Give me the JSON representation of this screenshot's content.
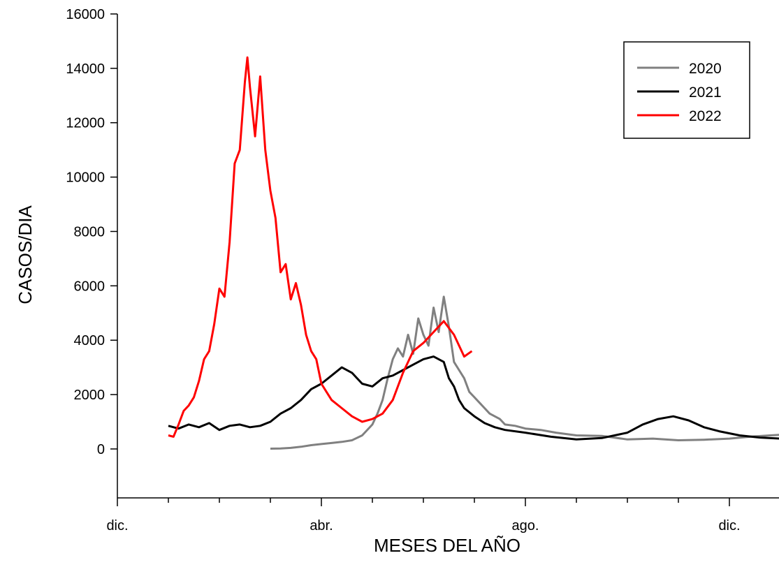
{
  "chart_data": {
    "type": "line",
    "xlabel": "MESES DEL AÑO",
    "ylabel": "CASOS/DIA",
    "ylim": [
      -1800,
      16000
    ],
    "yticks": [
      0,
      2000,
      4000,
      6000,
      8000,
      10000,
      12000,
      14000,
      16000
    ],
    "xlim": [
      0,
      13
    ],
    "xticks": [
      {
        "x": 0,
        "label": "dic."
      },
      {
        "x": 4,
        "label": "abr."
      },
      {
        "x": 8,
        "label": "ago."
      },
      {
        "x": 12,
        "label": "dic."
      }
    ],
    "x_units": "months since start of December",
    "legend_position": "top-right",
    "series": [
      {
        "name": "2020",
        "color": "#808080",
        "points": [
          [
            3.0,
            10
          ],
          [
            3.2,
            15
          ],
          [
            3.4,
            40
          ],
          [
            3.6,
            80
          ],
          [
            3.8,
            140
          ],
          [
            4.0,
            180
          ],
          [
            4.2,
            220
          ],
          [
            4.4,
            260
          ],
          [
            4.6,
            320
          ],
          [
            4.8,
            500
          ],
          [
            5.0,
            900
          ],
          [
            5.1,
            1300
          ],
          [
            5.2,
            1800
          ],
          [
            5.3,
            2600
          ],
          [
            5.4,
            3300
          ],
          [
            5.5,
            3700
          ],
          [
            5.6,
            3400
          ],
          [
            5.7,
            4200
          ],
          [
            5.8,
            3500
          ],
          [
            5.9,
            4800
          ],
          [
            6.0,
            4200
          ],
          [
            6.1,
            3800
          ],
          [
            6.2,
            5200
          ],
          [
            6.3,
            4300
          ],
          [
            6.4,
            5600
          ],
          [
            6.5,
            4500
          ],
          [
            6.6,
            3200
          ],
          [
            6.7,
            2900
          ],
          [
            6.8,
            2600
          ],
          [
            6.9,
            2100
          ],
          [
            7.0,
            1900
          ],
          [
            7.1,
            1700
          ],
          [
            7.2,
            1500
          ],
          [
            7.3,
            1300
          ],
          [
            7.4,
            1200
          ],
          [
            7.5,
            1100
          ],
          [
            7.6,
            900
          ],
          [
            7.8,
            850
          ],
          [
            8.0,
            750
          ],
          [
            8.3,
            700
          ],
          [
            8.6,
            600
          ],
          [
            9.0,
            500
          ],
          [
            9.5,
            480
          ],
          [
            10.0,
            350
          ],
          [
            10.5,
            380
          ],
          [
            11.0,
            320
          ],
          [
            11.5,
            340
          ],
          [
            12.0,
            380
          ],
          [
            12.4,
            450
          ],
          [
            12.8,
            500
          ],
          [
            13.0,
            520
          ]
        ]
      },
      {
        "name": "2021",
        "color": "#000000",
        "points": [
          [
            1.0,
            850
          ],
          [
            1.2,
            750
          ],
          [
            1.4,
            900
          ],
          [
            1.6,
            800
          ],
          [
            1.8,
            950
          ],
          [
            2.0,
            700
          ],
          [
            2.2,
            850
          ],
          [
            2.4,
            900
          ],
          [
            2.6,
            800
          ],
          [
            2.8,
            850
          ],
          [
            3.0,
            1000
          ],
          [
            3.2,
            1300
          ],
          [
            3.4,
            1500
          ],
          [
            3.6,
            1800
          ],
          [
            3.8,
            2200
          ],
          [
            4.0,
            2400
          ],
          [
            4.2,
            2700
          ],
          [
            4.4,
            3000
          ],
          [
            4.6,
            2800
          ],
          [
            4.8,
            2400
          ],
          [
            5.0,
            2300
          ],
          [
            5.2,
            2600
          ],
          [
            5.4,
            2700
          ],
          [
            5.6,
            2900
          ],
          [
            5.8,
            3100
          ],
          [
            6.0,
            3300
          ],
          [
            6.2,
            3400
          ],
          [
            6.4,
            3200
          ],
          [
            6.5,
            2600
          ],
          [
            6.6,
            2300
          ],
          [
            6.7,
            1800
          ],
          [
            6.8,
            1500
          ],
          [
            7.0,
            1200
          ],
          [
            7.2,
            950
          ],
          [
            7.4,
            800
          ],
          [
            7.6,
            700
          ],
          [
            8.0,
            600
          ],
          [
            8.5,
            450
          ],
          [
            9.0,
            350
          ],
          [
            9.5,
            400
          ],
          [
            10.0,
            600
          ],
          [
            10.3,
            900
          ],
          [
            10.6,
            1100
          ],
          [
            10.9,
            1200
          ],
          [
            11.2,
            1050
          ],
          [
            11.5,
            800
          ],
          [
            11.8,
            650
          ],
          [
            12.2,
            500
          ],
          [
            12.6,
            420
          ],
          [
            13.0,
            380
          ]
        ]
      },
      {
        "name": "2022",
        "color": "#ff0000",
        "points": [
          [
            1.0,
            500
          ],
          [
            1.1,
            450
          ],
          [
            1.2,
            900
          ],
          [
            1.3,
            1400
          ],
          [
            1.4,
            1600
          ],
          [
            1.5,
            1900
          ],
          [
            1.6,
            2500
          ],
          [
            1.7,
            3300
          ],
          [
            1.8,
            3600
          ],
          [
            1.9,
            4600
          ],
          [
            2.0,
            5900
          ],
          [
            2.1,
            5600
          ],
          [
            2.2,
            7600
          ],
          [
            2.3,
            10500
          ],
          [
            2.4,
            11000
          ],
          [
            2.5,
            13500
          ],
          [
            2.55,
            14400
          ],
          [
            2.6,
            13300
          ],
          [
            2.7,
            11500
          ],
          [
            2.8,
            13700
          ],
          [
            2.9,
            11000
          ],
          [
            3.0,
            9500
          ],
          [
            3.1,
            8500
          ],
          [
            3.2,
            6500
          ],
          [
            3.3,
            6800
          ],
          [
            3.4,
            5500
          ],
          [
            3.5,
            6100
          ],
          [
            3.6,
            5300
          ],
          [
            3.7,
            4200
          ],
          [
            3.8,
            3600
          ],
          [
            3.9,
            3300
          ],
          [
            4.0,
            2400
          ],
          [
            4.1,
            2100
          ],
          [
            4.2,
            1800
          ],
          [
            4.4,
            1500
          ],
          [
            4.6,
            1200
          ],
          [
            4.8,
            1000
          ],
          [
            5.0,
            1100
          ],
          [
            5.2,
            1300
          ],
          [
            5.4,
            1800
          ],
          [
            5.6,
            2800
          ],
          [
            5.8,
            3600
          ],
          [
            6.0,
            3900
          ],
          [
            6.2,
            4300
          ],
          [
            6.4,
            4700
          ],
          [
            6.6,
            4200
          ],
          [
            6.8,
            3400
          ],
          [
            6.95,
            3600
          ]
        ]
      }
    ]
  }
}
